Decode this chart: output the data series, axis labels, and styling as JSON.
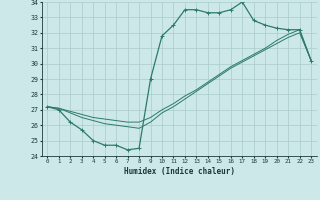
{
  "xlabel": "Humidex (Indice chaleur)",
  "bg_color": "#cce8e8",
  "grid_color": "#aacccc",
  "line_color": "#2d7a6a",
  "xlim": [
    -0.5,
    23.5
  ],
  "ylim": [
    24,
    34
  ],
  "xticks": [
    0,
    1,
    2,
    3,
    4,
    5,
    6,
    7,
    8,
    9,
    10,
    11,
    12,
    13,
    14,
    15,
    16,
    17,
    18,
    19,
    20,
    21,
    22,
    23
  ],
  "yticks": [
    24,
    25,
    26,
    27,
    28,
    29,
    30,
    31,
    32,
    33,
    34
  ],
  "line1_x": [
    0,
    1,
    2,
    3,
    4,
    5,
    6,
    7,
    8,
    9,
    10,
    11,
    12,
    13,
    14,
    15,
    16,
    17,
    18,
    19,
    20,
    21,
    22,
    23
  ],
  "line1_y": [
    27.2,
    27.0,
    26.2,
    25.7,
    25.0,
    24.7,
    24.7,
    24.4,
    24.5,
    29.0,
    31.8,
    32.5,
    33.5,
    33.5,
    33.3,
    33.3,
    33.5,
    34.0,
    32.8,
    32.5,
    32.3,
    32.2,
    32.2,
    30.2
  ],
  "line2_x": [
    0,
    1,
    2,
    3,
    4,
    5,
    6,
    7,
    8,
    9,
    10,
    11,
    12,
    13,
    14,
    15,
    16,
    17,
    18,
    19,
    20,
    21,
    22,
    23
  ],
  "line2_y": [
    27.2,
    27.1,
    26.8,
    26.5,
    26.3,
    26.1,
    26.0,
    25.9,
    25.8,
    26.2,
    26.8,
    27.2,
    27.7,
    28.2,
    28.7,
    29.2,
    29.7,
    30.1,
    30.5,
    30.9,
    31.3,
    31.7,
    32.0,
    30.2
  ],
  "line3_x": [
    0,
    1,
    2,
    3,
    4,
    5,
    6,
    7,
    8,
    9,
    10,
    11,
    12,
    13,
    14,
    15,
    16,
    17,
    18,
    19,
    20,
    21,
    22,
    23
  ],
  "line3_y": [
    27.2,
    27.1,
    26.9,
    26.7,
    26.5,
    26.4,
    26.3,
    26.2,
    26.2,
    26.5,
    27.0,
    27.4,
    27.9,
    28.3,
    28.8,
    29.3,
    29.8,
    30.2,
    30.6,
    31.0,
    31.5,
    31.9,
    32.2,
    30.2
  ]
}
